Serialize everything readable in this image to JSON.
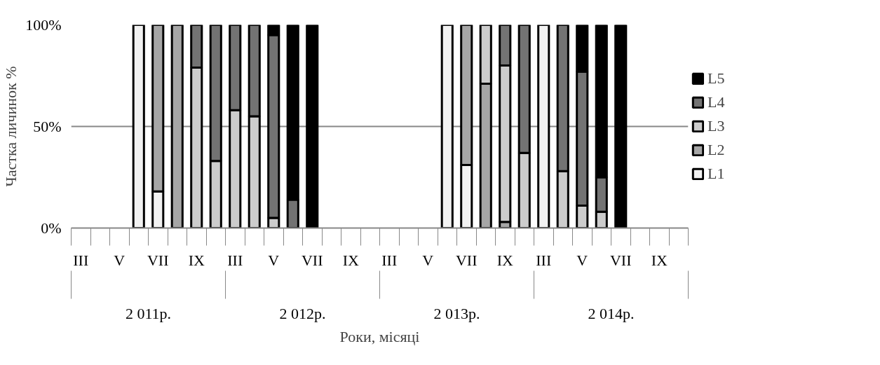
{
  "chart_data": {
    "type": "bar",
    "stacked": true,
    "categories": [
      "III",
      null,
      "V",
      null,
      "VII",
      null,
      "IX",
      null,
      "III",
      null,
      "V",
      null,
      "VII",
      null,
      "IX",
      null,
      "III",
      null,
      "V",
      null,
      "VII",
      null,
      "IX",
      null,
      "III",
      null,
      "V",
      null,
      "VII",
      null,
      "IX",
      null
    ],
    "series": [
      {
        "name": "L1",
        "color": "#f2f2f2",
        "values": [
          null,
          null,
          null,
          100,
          18,
          null,
          null,
          null,
          null,
          null,
          null,
          null,
          null,
          null,
          null,
          null,
          null,
          null,
          null,
          100,
          31,
          null,
          null,
          null,
          100,
          null,
          null,
          null,
          null,
          null,
          null,
          null
        ]
      },
      {
        "name": "L2",
        "color": "#a6a6a6",
        "values": [
          null,
          null,
          null,
          null,
          82,
          100,
          null,
          null,
          null,
          null,
          null,
          null,
          null,
          null,
          null,
          null,
          null,
          null,
          null,
          null,
          69,
          71,
          3,
          null,
          null,
          null,
          null,
          null,
          null,
          null,
          null,
          null
        ]
      },
      {
        "name": "L3",
        "color": "#cccccc",
        "values": [
          null,
          null,
          null,
          null,
          null,
          null,
          79,
          33,
          58,
          55,
          5,
          null,
          null,
          null,
          null,
          null,
          null,
          null,
          null,
          null,
          null,
          29,
          77,
          37,
          null,
          28,
          11,
          8,
          null,
          null,
          null,
          null
        ]
      },
      {
        "name": "L4",
        "color": "#737373",
        "values": [
          null,
          null,
          null,
          null,
          null,
          null,
          21,
          67,
          42,
          45,
          90,
          14,
          null,
          null,
          null,
          null,
          null,
          null,
          null,
          null,
          null,
          null,
          20,
          63,
          null,
          72,
          66,
          17,
          null,
          null,
          null,
          null
        ]
      },
      {
        "name": "L5",
        "color": "#000000",
        "values": [
          null,
          null,
          null,
          null,
          null,
          null,
          null,
          null,
          null,
          null,
          5,
          86,
          100,
          null,
          null,
          null,
          null,
          null,
          null,
          null,
          null,
          null,
          null,
          null,
          null,
          null,
          23,
          75,
          100,
          null,
          null,
          null
        ]
      }
    ],
    "ylim": [
      0,
      100
    ],
    "yticks": [
      {
        "value": 0,
        "label": "0%"
      },
      {
        "value": 50,
        "label": "50%"
      },
      {
        "value": 100,
        "label": "100%"
      }
    ],
    "ylabel": "Частка личинок %",
    "xlabel": "Роки, місяці",
    "annotations": [
      "2 011р.",
      "2 012р.",
      "2 013р.",
      "2 014р."
    ],
    "grid": "y",
    "legend": "right"
  }
}
